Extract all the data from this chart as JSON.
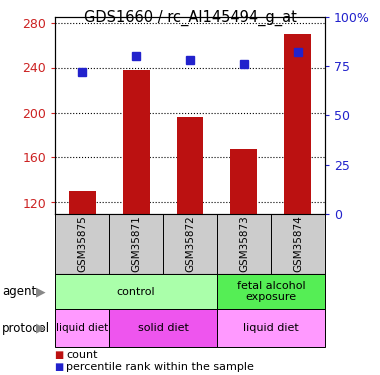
{
  "title": "GDS1660 / rc_AI145494_g_at",
  "samples": [
    "GSM35875",
    "GSM35871",
    "GSM35872",
    "GSM35873",
    "GSM35874"
  ],
  "counts": [
    130,
    238,
    196,
    168,
    270
  ],
  "percentiles": [
    72,
    80,
    78,
    76,
    82
  ],
  "ylim_left": [
    110,
    285
  ],
  "ylim_right": [
    0,
    100
  ],
  "left_ticks": [
    120,
    160,
    200,
    240,
    280
  ],
  "right_ticks": [
    0,
    25,
    50,
    75,
    100
  ],
  "right_tick_labels": [
    "0",
    "25",
    "50",
    "75",
    "100%"
  ],
  "bar_color": "#bb1111",
  "dot_color": "#2222cc",
  "bar_width": 0.5,
  "agent_groups": [
    {
      "text": "control",
      "xmin": -0.5,
      "xmax": 2.5,
      "color": "#aaffaa"
    },
    {
      "text": "fetal alcohol\nexposure",
      "xmin": 2.5,
      "xmax": 4.5,
      "color": "#55ee55"
    }
  ],
  "proto_groups": [
    {
      "text": "liquid diet",
      "xmin": -0.5,
      "xmax": 0.5,
      "color": "#ff99ff"
    },
    {
      "text": "solid diet",
      "xmin": 0.5,
      "xmax": 2.5,
      "color": "#ee55ee"
    },
    {
      "text": "liquid diet",
      "xmin": 2.5,
      "xmax": 4.5,
      "color": "#ff99ff"
    }
  ],
  "tick_color_left": "#cc2222",
  "tick_color_right": "#2222cc",
  "sample_box_color": "#cccccc",
  "grid_linestyle": "dotted",
  "grid_color": "black"
}
